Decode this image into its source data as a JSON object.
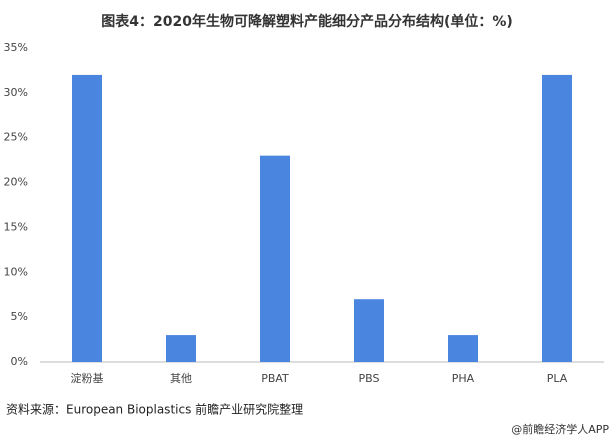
{
  "chart_data": {
    "type": "bar",
    "title": "图表4：2020年生物可降解塑料产能细分产品分布结构(单位：%)",
    "categories": [
      "淀粉基",
      "其他",
      "PBAT",
      "PBS",
      "PHA",
      "PLA"
    ],
    "values": [
      32,
      3,
      23,
      7,
      3,
      32
    ],
    "color": "#4a86e0",
    "ylim": [
      0,
      35
    ],
    "yticks": [
      {
        "value": 0,
        "label": "0%"
      },
      {
        "value": 5,
        "label": "5%"
      },
      {
        "value": 10,
        "label": "10%"
      },
      {
        "value": 15,
        "label": "15%"
      },
      {
        "value": 20,
        "label": "20%"
      },
      {
        "value": 25,
        "label": "25%"
      },
      {
        "value": 30,
        "label": "30%"
      },
      {
        "value": 35,
        "label": "35%"
      }
    ],
    "grid": false,
    "source": "资料来源：European Bioplastics 前瞻产业研究院整理",
    "footer": "@前瞻经济学人APP"
  }
}
